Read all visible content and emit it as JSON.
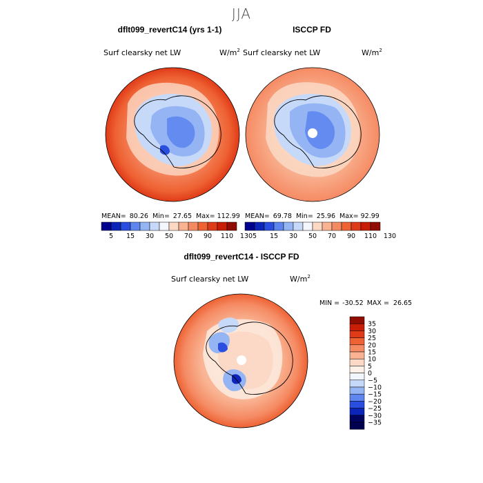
{
  "chart_data": {
    "season": "JJA",
    "panels": [
      {
        "type": "polar_map",
        "title": "dflt099_revertC14 (yrs 1-1)",
        "left_label": "Surf clearsky net LW",
        "units_label": "W/m",
        "units_exp": "2",
        "stats": {
          "mean_label": "MEAN=",
          "mean": "80.26",
          "min_label": "Min=",
          "min": "27.65",
          "max_label": "Max=",
          "max": "112.99"
        },
        "colorbar": {
          "ticks": [
            "5",
            "15",
            "30",
            "50",
            "70",
            "90",
            "110",
            "130"
          ]
        }
      },
      {
        "type": "polar_map",
        "title": "ISCCP FD",
        "left_label": "Surf clearsky net LW",
        "units_label": "W/m",
        "units_exp": "2",
        "stats": {
          "mean_label": "MEAN=",
          "mean": "69.78",
          "min_label": "Min=",
          "min": "25.96",
          "max_label": "Max=",
          "max": "92.99"
        },
        "colorbar": {
          "ticks": [
            "5",
            "15",
            "30",
            "50",
            "70",
            "90",
            "110",
            "130"
          ]
        }
      },
      {
        "type": "polar_map",
        "title": "dflt099_revertC14 - ISCCP FD",
        "left_label": "Surf clearsky net LW",
        "units_label": "W/m",
        "units_exp": "2",
        "minmax": {
          "min_label": "MIN =",
          "min": "-30.52",
          "max_label": "MAX =",
          "max": "26.65"
        },
        "colorbar": {
          "ticks": [
            "35",
            "30",
            "25",
            "20",
            "15",
            "10",
            "5",
            "0",
            "−5",
            "−10",
            "−15",
            "−20",
            "−25",
            "−30",
            "−35"
          ]
        }
      }
    ],
    "colors": {
      "abs_scale": [
        "#00008f",
        "#0d24b8",
        "#2a4fe0",
        "#5e86ee",
        "#94b4f4",
        "#c6d9f9",
        "#f3f6fc",
        "#fcd9c6",
        "#f9b392",
        "#f58b64",
        "#ee6233",
        "#e03b18",
        "#c81e08",
        "#8f0d03"
      ],
      "diff_scale": [
        "#8f0d03",
        "#c81e08",
        "#e03b18",
        "#ee6233",
        "#f58b64",
        "#f9b392",
        "#fcd9c6",
        "#fdf0e6",
        "#f1f5fc",
        "#c6d9f9",
        "#94b4f4",
        "#5e86ee",
        "#2a4fe0",
        "#0d24b8",
        "#00045e",
        "#000050"
      ]
    }
  }
}
